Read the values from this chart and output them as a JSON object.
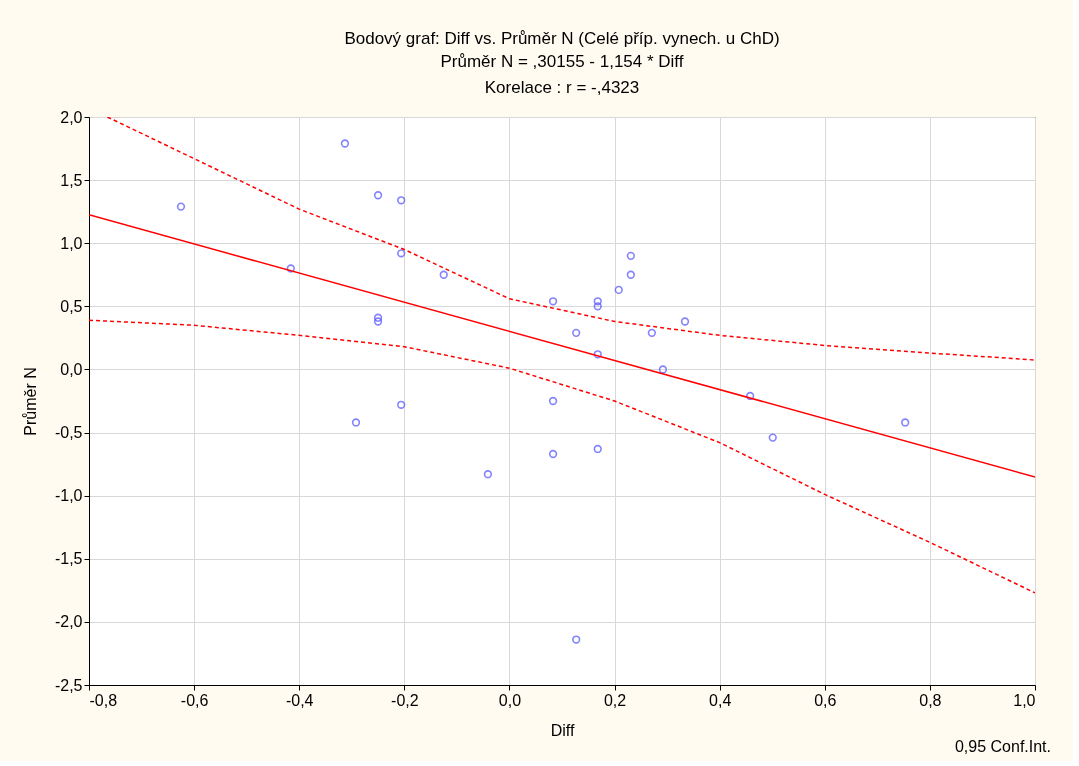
{
  "chart_data": {
    "type": "scatter",
    "title": "Bodový graf: Diff     vs. Průměr N (Celé příp. vynech. u ChD)",
    "subtitle": "Průměr N = ,30155 - 1,154  * Diff\nKorelace :   r = -,4323",
    "xlabel": "Diff",
    "ylabel": "Průměr N",
    "annotations": [
      "0,95 Conf.Int."
    ],
    "xlim": [
      -0.8,
      1.0
    ],
    "xticks": [
      {
        "value": -0.8,
        "label": "-0,8"
      },
      {
        "value": -0.6,
        "label": "-0,6"
      },
      {
        "value": -0.4,
        "label": "-0,4"
      },
      {
        "value": -0.2,
        "label": "-0,2"
      },
      {
        "value": 0.0,
        "label": "0,0"
      },
      {
        "value": 0.2,
        "label": "0,2"
      },
      {
        "value": 0.4,
        "label": "0,4"
      },
      {
        "value": 0.6,
        "label": "0,6"
      },
      {
        "value": 0.8,
        "label": "0,8"
      },
      {
        "value": 1.0,
        "label": "1,0"
      }
    ],
    "ylim": [
      -2.5,
      2.0
    ],
    "yticks": [
      {
        "value": -2.5,
        "label": "-2,5"
      },
      {
        "value": -2.0,
        "label": "-2,0"
      },
      {
        "value": -1.5,
        "label": "-1,5"
      },
      {
        "value": -1.0,
        "label": "-1,0"
      },
      {
        "value": -0.5,
        "label": "-0,5"
      },
      {
        "value": 0.0,
        "label": "0,0"
      },
      {
        "value": 0.5,
        "label": "0,5"
      },
      {
        "value": 1.0,
        "label": "1,0"
      },
      {
        "value": 1.5,
        "label": "1,5"
      },
      {
        "value": 2.0,
        "label": "2,0"
      }
    ],
    "grid": true,
    "series": [
      {
        "marker": "circle",
        "color": "#5050ff",
        "x": [
          -0.625,
          -0.416,
          -0.313,
          -0.25,
          -0.206,
          -0.206,
          -0.125,
          -0.25,
          -0.25,
          -0.292,
          -0.206,
          -0.041,
          0.083,
          0.083,
          0.083,
          0.127,
          0.127,
          0.168,
          0.168,
          0.168,
          0.168,
          0.208,
          0.231,
          0.231,
          0.271,
          0.292,
          0.334,
          0.458,
          0.501,
          0.753
        ],
        "values": [
          1.29,
          0.8,
          1.79,
          1.38,
          1.34,
          0.92,
          0.75,
          0.41,
          0.38,
          -0.42,
          -0.28,
          -0.83,
          0.54,
          -0.25,
          -0.67,
          0.29,
          -2.14,
          0.54,
          0.5,
          0.12,
          -0.63,
          0.63,
          0.9,
          0.75,
          0.29,
          0.0,
          0.38,
          -0.21,
          -0.54,
          -0.42
        ]
      },
      {
        "type": "line",
        "color": "#ff0000",
        "line_style": "solid",
        "x": [
          -0.8,
          1.0
        ],
        "values": [
          1.225,
          -0.852
        ]
      },
      {
        "type": "line",
        "color": "#ff0000",
        "line_style": "dashed",
        "x": [
          -0.765,
          -0.6,
          -0.4,
          -0.2,
          0.0,
          0.2,
          0.4,
          0.6,
          0.8,
          1.0
        ],
        "values": [
          2.0,
          1.67,
          1.27,
          0.95,
          0.56,
          0.38,
          0.27,
          0.19,
          0.13,
          0.075
        ]
      },
      {
        "type": "line",
        "color": "#ff0000",
        "line_style": "dashed",
        "x": [
          -0.8,
          -0.6,
          -0.4,
          -0.2,
          0.0,
          0.2,
          0.4,
          0.6,
          0.8,
          1.0
        ],
        "values": [
          0.39,
          0.35,
          0.27,
          0.18,
          0.01,
          -0.25,
          -0.58,
          -0.99,
          -1.37,
          -1.77
        ]
      }
    ]
  }
}
